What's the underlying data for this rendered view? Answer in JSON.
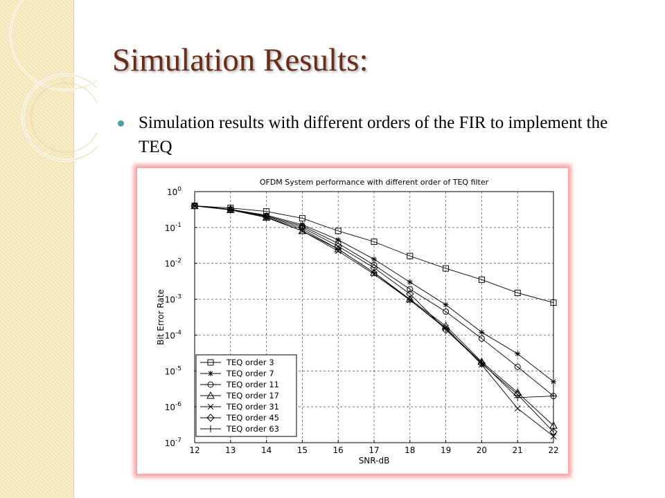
{
  "slide": {
    "title": "Simulation Results:",
    "bullet": "Simulation results with different orders of the FIR to implement the TEQ"
  },
  "chart_data": {
    "type": "line",
    "title": "OFDM System performance with different order of TEQ filter",
    "xlabel": "SNR-dB",
    "ylabel": "Bit Error Rate",
    "y_scale": "log",
    "xlim": [
      12,
      22
    ],
    "ylim": [
      1e-07,
      1
    ],
    "x_ticks": [
      "12",
      "13",
      "14",
      "15",
      "16",
      "17",
      "18",
      "19",
      "20",
      "21",
      "22"
    ],
    "y_ticks": [
      {
        "base": "10",
        "exp": "0",
        "v": 1
      },
      {
        "base": "10",
        "exp": "-1",
        "v": 0.1
      },
      {
        "base": "10",
        "exp": "-2",
        "v": 0.01
      },
      {
        "base": "10",
        "exp": "-3",
        "v": 0.001
      },
      {
        "base": "10",
        "exp": "-4",
        "v": 0.0001
      },
      {
        "base": "10",
        "exp": "-5",
        "v": 1e-05
      },
      {
        "base": "10",
        "exp": "-6",
        "v": 1e-06
      },
      {
        "base": "10",
        "exp": "-7",
        "v": 1e-07
      }
    ],
    "grid": true,
    "legend_position": "bottom-left",
    "x": [
      12,
      13,
      14,
      15,
      16,
      17,
      18,
      19,
      20,
      21,
      22
    ],
    "series": [
      {
        "name": "TEQ order 3",
        "marker": "square",
        "values": [
          0.4,
          0.35,
          0.28,
          0.18,
          0.08,
          0.04,
          0.016,
          0.0072,
          0.0035,
          0.0015,
          0.0008
        ]
      },
      {
        "name": "TEQ order 7",
        "marker": "star",
        "values": [
          0.4,
          0.32,
          0.22,
          0.12,
          0.045,
          0.013,
          0.003,
          0.0007,
          0.00012,
          3e-05,
          5e-06
        ]
      },
      {
        "name": "TEQ order 11",
        "marker": "circle",
        "values": [
          0.4,
          0.32,
          0.21,
          0.11,
          0.036,
          0.009,
          0.0019,
          0.00045,
          8e-05,
          1.3e-05,
          2e-06
        ]
      },
      {
        "name": "TEQ order 17",
        "marker": "triangle",
        "values": [
          0.4,
          0.31,
          0.19,
          0.08,
          0.025,
          0.0055,
          0.001,
          0.00018,
          1.8e-05,
          2.5e-06,
          3e-07
        ]
      },
      {
        "name": "TEQ order 31",
        "marker": "x",
        "values": [
          0.4,
          0.31,
          0.19,
          0.08,
          0.022,
          0.005,
          0.00095,
          0.00016,
          1.5e-05,
          9e-07,
          1.5e-07
        ]
      },
      {
        "name": "TEQ order 45",
        "marker": "diamond",
        "values": [
          0.4,
          0.32,
          0.2,
          0.1,
          0.03,
          0.0075,
          0.0014,
          0.00014,
          1.6e-05,
          2.2e-06,
          2e-07
        ]
      },
      {
        "name": "TEQ order 63",
        "marker": "plus",
        "values": [
          0.4,
          0.31,
          0.19,
          0.09,
          0.025,
          0.0055,
          0.00095,
          0.00015,
          1.7e-05,
          1.8e-06,
          2e-06
        ]
      }
    ]
  }
}
